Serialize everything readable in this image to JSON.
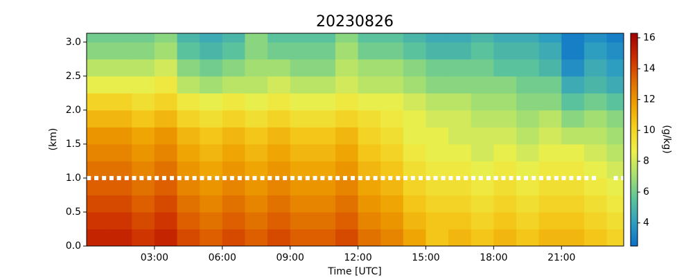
{
  "chart_data": {
    "type": "heatmap",
    "title": "20230826",
    "xlabel": "Time [UTC]",
    "ylabel": "(km)",
    "colorbar_label": "(g/kg)",
    "xlim": [
      0,
      23.75
    ],
    "ylim": [
      0,
      3.13
    ],
    "xticks": [
      {
        "value": 3,
        "label": "03:00"
      },
      {
        "value": 6,
        "label": "06:00"
      },
      {
        "value": 9,
        "label": "09:00"
      },
      {
        "value": 12,
        "label": "12:00"
      },
      {
        "value": 15,
        "label": "15:00"
      },
      {
        "value": 18,
        "label": "18:00"
      },
      {
        "value": 21,
        "label": "21:00"
      }
    ],
    "yticks": [
      {
        "value": 0,
        "label": "0.0"
      },
      0.5,
      {
        "value": 1,
        "label": "1.0"
      },
      1.5,
      {
        "value": 2,
        "label": "2.0"
      },
      2.5,
      {
        "value": 3,
        "label": "3.0"
      }
    ],
    "clim": [
      2.5,
      16.3
    ],
    "cticks": [
      4,
      6,
      8,
      10,
      12,
      14,
      16
    ],
    "colorscale": [
      "#0a6fc8",
      "#2f9fc0",
      "#5cc49a",
      "#a8e070",
      "#eef04a",
      "#f4d020",
      "#eea000",
      "#e06a00",
      "#cc2a00",
      "#a00000"
    ],
    "x_edges": [
      0,
      1,
      2,
      3,
      4,
      5,
      6,
      7,
      8,
      9,
      10,
      11,
      12,
      13,
      14,
      15,
      16,
      17,
      18,
      19,
      20,
      21,
      22,
      23,
      23.75
    ],
    "y_edges": [
      0,
      0.25,
      0.5,
      0.75,
      1,
      1.25,
      1.5,
      1.75,
      2,
      2.25,
      2.5,
      2.75,
      3,
      3.13
    ],
    "z": [
      [
        15,
        15,
        14.5,
        15,
        14,
        13.5,
        14,
        13.5,
        14,
        13.5,
        13.5,
        14,
        13,
        12.5,
        11.5,
        10.5,
        11,
        10.5,
        11,
        10.5,
        11,
        11,
        10.5,
        10
      ],
      [
        14.5,
        14.5,
        14,
        14.5,
        13.5,
        13,
        13.5,
        13,
        13.5,
        13,
        13,
        13.5,
        12.5,
        12,
        11,
        10.5,
        10.5,
        10,
        10.5,
        10,
        10.5,
        10.5,
        10,
        9.5
      ],
      [
        14,
        14,
        13.5,
        14,
        13,
        12.5,
        13,
        12.5,
        13,
        12.5,
        12.5,
        13,
        12,
        11.5,
        10.5,
        10,
        10,
        9.5,
        10,
        9.5,
        10,
        10,
        9.5,
        9
      ],
      [
        13.5,
        13.5,
        13,
        13.5,
        12.5,
        12,
        12.5,
        12,
        12.5,
        12,
        12,
        12.5,
        11.5,
        11,
        10,
        9.5,
        9.5,
        9,
        9.5,
        9,
        9.5,
        9.5,
        9,
        8.5
      ],
      [
        13,
        13,
        12.5,
        13,
        12,
        11.5,
        12,
        11.5,
        12,
        11.5,
        11.5,
        12,
        11,
        10.5,
        9.5,
        9,
        9,
        8.5,
        9,
        8.5,
        9,
        9,
        8.5,
        8
      ],
      [
        12.5,
        12.5,
        12,
        12.5,
        11.5,
        11,
        11.5,
        11,
        11.5,
        11,
        11,
        11.5,
        10.5,
        10,
        9,
        8.5,
        8.5,
        8,
        8.5,
        8,
        8.5,
        8.5,
        8,
        7.5
      ],
      [
        12,
        12,
        11.5,
        12,
        11,
        10.5,
        11,
        10.5,
        11,
        10.5,
        10.5,
        11,
        10,
        9.5,
        8.5,
        8.5,
        8,
        8,
        8,
        7.5,
        8,
        7.5,
        7.5,
        7
      ],
      [
        11,
        11,
        10.5,
        11,
        10,
        9.5,
        10,
        9.5,
        10,
        9.5,
        9.5,
        10,
        9.5,
        9,
        8.5,
        8,
        8,
        7.5,
        7.5,
        7,
        7.5,
        6.5,
        7,
        6.5
      ],
      [
        10,
        10,
        9.5,
        10,
        9,
        8.5,
        9,
        8.5,
        9,
        8.5,
        8.5,
        9,
        8.5,
        8.5,
        8,
        7.5,
        7.5,
        7,
        7,
        6.5,
        6.5,
        5.5,
        6,
        5.5
      ],
      [
        8.5,
        8.5,
        8.5,
        9,
        7.5,
        7,
        7.5,
        7.5,
        8,
        7.5,
        7.5,
        8,
        7.5,
        7.5,
        7,
        6.5,
        6.5,
        6.5,
        6.5,
        6,
        6,
        4.5,
        5,
        4.5
      ],
      [
        7.5,
        7.5,
        7.5,
        8,
        6.5,
        6,
        6.5,
        7,
        7,
        6.5,
        6.5,
        7.5,
        7,
        7,
        6.5,
        6,
        6,
        6,
        5.5,
        5.5,
        5,
        3.5,
        4.5,
        4
      ],
      [
        6.5,
        6.5,
        6.5,
        7,
        5.5,
        5,
        5.5,
        6.5,
        6,
        6,
        6,
        7,
        6,
        6,
        5.5,
        5,
        5,
        5.5,
        5,
        5,
        4.5,
        3,
        4,
        3.5
      ],
      [
        6,
        6,
        6,
        6.5,
        5,
        4.5,
        5,
        6.5,
        5.5,
        5.5,
        5.5,
        6.5,
        5.5,
        5.5,
        5,
        4.5,
        4.5,
        5,
        4.5,
        4.5,
        4,
        3,
        3.5,
        3
      ]
    ],
    "markers": {
      "color": "#ffffff",
      "x": [
        0.1,
        0.43,
        0.77,
        1.1,
        1.43,
        1.77,
        2.1,
        2.43,
        2.77,
        3.1,
        3.43,
        3.77,
        4.1,
        4.43,
        4.77,
        5.1,
        5.43,
        5.77,
        6.1,
        6.43,
        6.77,
        7.1,
        7.43,
        7.77,
        8.1,
        8.43,
        8.77,
        9.1,
        9.43,
        9.77,
        10.1,
        10.43,
        10.77,
        11.1,
        11.43,
        11.77,
        12.1,
        12.43,
        12.77,
        13.1,
        13.43,
        13.77,
        14.1,
        14.43,
        14.77,
        15.1,
        15.43,
        15.77,
        16.1,
        16.43,
        16.77,
        17.1,
        17.43,
        17.77,
        18.1,
        18.43,
        18.77,
        19.1,
        19.43,
        19.77,
        20.1,
        20.43,
        20.77,
        21.1,
        21.43,
        21.77,
        22.1,
        22.43,
        23.4,
        23.73
      ],
      "values": [
        1,
        1,
        1,
        1,
        1,
        1,
        1,
        1,
        1,
        1,
        1,
        1,
        1,
        1,
        1,
        1,
        1,
        1,
        1,
        1,
        1,
        1,
        1,
        1,
        1,
        1,
        1,
        1,
        1,
        1,
        1,
        1,
        1,
        1,
        1,
        1,
        1,
        1,
        1,
        1,
        1,
        1,
        1,
        1,
        1,
        1,
        1,
        1,
        1,
        1,
        1,
        1,
        1,
        1,
        1,
        1,
        1,
        1,
        1,
        1,
        1,
        1,
        1,
        1,
        1,
        1,
        1,
        1,
        1,
        1
      ]
    }
  }
}
